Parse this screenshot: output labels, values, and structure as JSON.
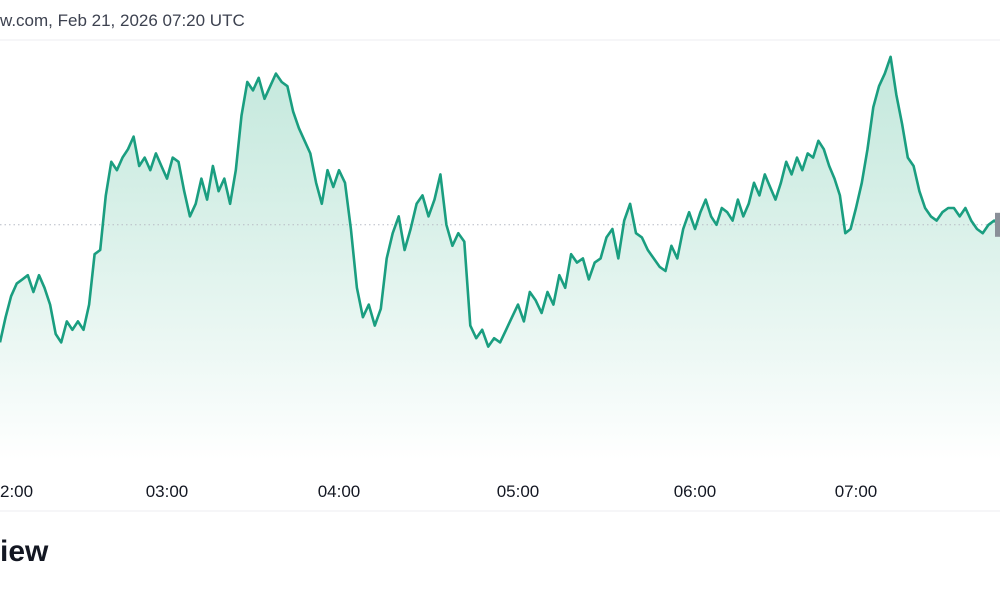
{
  "header": {
    "source_text": "w.com, Feb 21, 2026 07:20 UTC"
  },
  "section": {
    "title": "iew"
  },
  "colors": {
    "line": "#1a9e80",
    "fill_top": "#b9e4d6",
    "fill_bottom": "#ffffff",
    "reference_line": "#b7bcc6",
    "grid": "#eceef2",
    "price_tag": "#8a8f98"
  },
  "chart_data": {
    "type": "area",
    "title": "",
    "xlabel": "",
    "ylabel": "",
    "x_ticks": [
      {
        "label": "2:00",
        "time": "02:00"
      },
      {
        "label": "03:00",
        "time": "03:00"
      },
      {
        "label": "04:00",
        "time": "04:00"
      },
      {
        "label": "05:00",
        "time": "05:00"
      },
      {
        "label": "06:00",
        "time": "06:00"
      },
      {
        "label": "07:00",
        "time": "07:00"
      }
    ],
    "xlim": [
      "02:00",
      "07:50"
    ],
    "ylim": [
      0,
      100
    ],
    "reference_value": 56,
    "grid": false,
    "legend": "none",
    "series": [
      {
        "values": [
          [
            0,
            28
          ],
          [
            2,
            34
          ],
          [
            4,
            39
          ],
          [
            6,
            42
          ],
          [
            8,
            43
          ],
          [
            10,
            44
          ],
          [
            12,
            40
          ],
          [
            14,
            44
          ],
          [
            16,
            41
          ],
          [
            18,
            37
          ],
          [
            20,
            30
          ],
          [
            22,
            28
          ],
          [
            24,
            33
          ],
          [
            26,
            31
          ],
          [
            28,
            33
          ],
          [
            30,
            31
          ],
          [
            32,
            37
          ],
          [
            34,
            49
          ],
          [
            36,
            50
          ],
          [
            38,
            63
          ],
          [
            40,
            71
          ],
          [
            42,
            69
          ],
          [
            44,
            72
          ],
          [
            46,
            74
          ],
          [
            48,
            77
          ],
          [
            50,
            70
          ],
          [
            52,
            72
          ],
          [
            54,
            69
          ],
          [
            56,
            73
          ],
          [
            58,
            70
          ],
          [
            60,
            67
          ],
          [
            62,
            72
          ],
          [
            64,
            71
          ],
          [
            66,
            64
          ],
          [
            68,
            58
          ],
          [
            70,
            61
          ],
          [
            72,
            67
          ],
          [
            74,
            62
          ],
          [
            76,
            70
          ],
          [
            78,
            64
          ],
          [
            80,
            67
          ],
          [
            82,
            61
          ],
          [
            84,
            69
          ],
          [
            86,
            82
          ],
          [
            88,
            90
          ],
          [
            90,
            88
          ],
          [
            92,
            91
          ],
          [
            94,
            86
          ],
          [
            96,
            89
          ],
          [
            98,
            92
          ],
          [
            100,
            90
          ],
          [
            102,
            89
          ],
          [
            104,
            83
          ],
          [
            106,
            79
          ],
          [
            108,
            76
          ],
          [
            110,
            73
          ],
          [
            112,
            66
          ],
          [
            114,
            61
          ],
          [
            116,
            69
          ],
          [
            118,
            65
          ],
          [
            120,
            69
          ],
          [
            122,
            66
          ],
          [
            124,
            55
          ],
          [
            126,
            41
          ],
          [
            128,
            34
          ],
          [
            130,
            37
          ],
          [
            132,
            32
          ],
          [
            134,
            36
          ],
          [
            136,
            48
          ],
          [
            138,
            54
          ],
          [
            140,
            58
          ],
          [
            142,
            50
          ],
          [
            144,
            55
          ],
          [
            146,
            61
          ],
          [
            148,
            63
          ],
          [
            150,
            58
          ],
          [
            152,
            62
          ],
          [
            154,
            68
          ],
          [
            156,
            56
          ],
          [
            158,
            51
          ],
          [
            160,
            54
          ],
          [
            162,
            52
          ],
          [
            164,
            32
          ],
          [
            166,
            29
          ],
          [
            168,
            31
          ],
          [
            170,
            27
          ],
          [
            172,
            29
          ],
          [
            174,
            28
          ],
          [
            176,
            31
          ],
          [
            178,
            34
          ],
          [
            180,
            37
          ],
          [
            182,
            33
          ],
          [
            184,
            40
          ],
          [
            186,
            38
          ],
          [
            188,
            35
          ],
          [
            190,
            40
          ],
          [
            192,
            37
          ],
          [
            194,
            44
          ],
          [
            196,
            41
          ],
          [
            198,
            49
          ],
          [
            200,
            47
          ],
          [
            202,
            48
          ],
          [
            204,
            43
          ],
          [
            206,
            47
          ],
          [
            208,
            48
          ],
          [
            210,
            53
          ],
          [
            212,
            55
          ],
          [
            214,
            48
          ],
          [
            216,
            57
          ],
          [
            218,
            61
          ],
          [
            220,
            54
          ],
          [
            222,
            53
          ],
          [
            224,
            50
          ],
          [
            226,
            48
          ],
          [
            228,
            46
          ],
          [
            230,
            45
          ],
          [
            232,
            51
          ],
          [
            234,
            48
          ],
          [
            236,
            55
          ],
          [
            238,
            59
          ],
          [
            240,
            55
          ],
          [
            242,
            59
          ],
          [
            244,
            62
          ],
          [
            246,
            58
          ],
          [
            248,
            56
          ],
          [
            250,
            60
          ],
          [
            252,
            59
          ],
          [
            254,
            57
          ],
          [
            256,
            62
          ],
          [
            258,
            58
          ],
          [
            260,
            61
          ],
          [
            262,
            66
          ],
          [
            264,
            63
          ],
          [
            266,
            68
          ],
          [
            268,
            65
          ],
          [
            270,
            62
          ],
          [
            272,
            66
          ],
          [
            274,
            71
          ],
          [
            276,
            68
          ],
          [
            278,
            72
          ],
          [
            280,
            69
          ],
          [
            282,
            73
          ],
          [
            284,
            72
          ],
          [
            286,
            76
          ],
          [
            288,
            74
          ],
          [
            290,
            70
          ],
          [
            292,
            67
          ],
          [
            294,
            63
          ],
          [
            296,
            54
          ],
          [
            298,
            55
          ],
          [
            300,
            60
          ],
          [
            302,
            66
          ],
          [
            304,
            74
          ],
          [
            306,
            84
          ],
          [
            308,
            89
          ],
          [
            310,
            92
          ],
          [
            312,
            96
          ],
          [
            314,
            87
          ],
          [
            316,
            80
          ],
          [
            318,
            72
          ],
          [
            320,
            70
          ],
          [
            322,
            64
          ],
          [
            324,
            60
          ],
          [
            326,
            58
          ],
          [
            328,
            57
          ],
          [
            330,
            59
          ],
          [
            332,
            60
          ],
          [
            334,
            60
          ],
          [
            336,
            58
          ],
          [
            338,
            60
          ],
          [
            340,
            57
          ],
          [
            342,
            55
          ],
          [
            344,
            54
          ],
          [
            346,
            56
          ],
          [
            348,
            57
          ],
          [
            350,
            56
          ]
        ]
      }
    ]
  }
}
